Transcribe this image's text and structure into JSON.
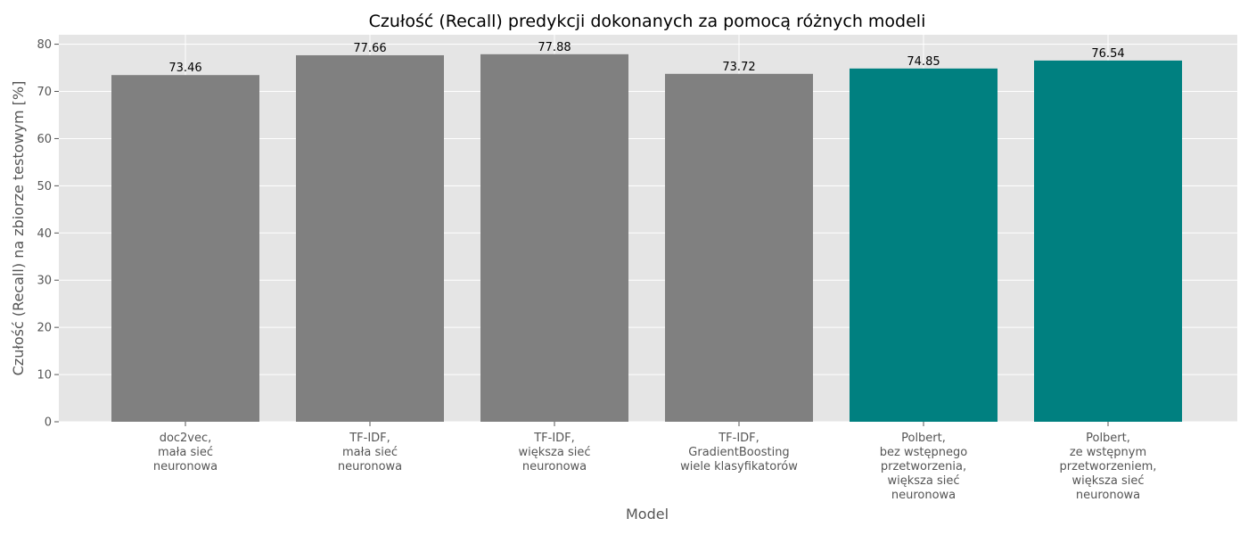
{
  "chart_data": {
    "type": "bar",
    "title": "Czułość (Recall) predykcji dokonanych za pomocą różnych modeli",
    "xlabel": "Model",
    "ylabel": "Czułość (Recall) na zbiorze testowym [%]",
    "ylim": [
      0,
      82
    ],
    "yticks": [
      0,
      10,
      20,
      30,
      40,
      50,
      60,
      70,
      80
    ],
    "grid": true,
    "categories": [
      [
        "doc2vec,",
        "mała sieć",
        "neuronowa"
      ],
      [
        "TF-IDF,",
        "mała sieć",
        "neuronowa"
      ],
      [
        "TF-IDF,",
        "większa sieć",
        "neuronowa"
      ],
      [
        "TF-IDF,",
        "GradientBoosting",
        "wiele klasyfikatorów"
      ],
      [
        "Polbert,",
        "bez wstępnego",
        "przetworzenia,",
        "większa sieć",
        "neuronowa"
      ],
      [
        "Polbert,",
        "ze wstępnym",
        "przetworzeniem,",
        "większa sieć",
        "neuronowa"
      ]
    ],
    "values": [
      73.46,
      77.66,
      77.88,
      73.72,
      74.85,
      76.54
    ],
    "value_labels": [
      "73.46",
      "77.66",
      "77.88",
      "73.72",
      "74.85",
      "76.54"
    ],
    "bar_colors": [
      "#808080",
      "#808080",
      "#808080",
      "#808080",
      "#008080",
      "#008080"
    ],
    "background_color": "#e5e5e5",
    "grid_color": "#ffffff"
  }
}
